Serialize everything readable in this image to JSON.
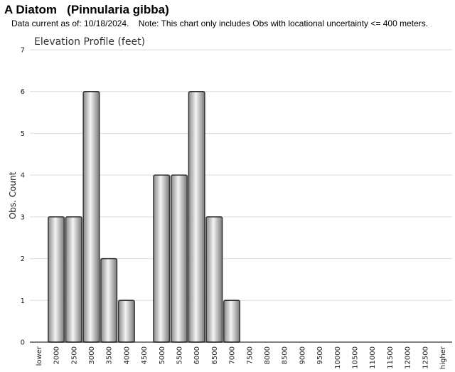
{
  "header": {
    "species_common": "A Diatom",
    "species_latin": "(Pinnularia gibba)",
    "data_note": "Data current as of: 10/18/2024.    Note: This chart only includes Obs with locational uncertainty <= 400 meters."
  },
  "chart_data": {
    "type": "bar",
    "title": "Elevation Profile (feet)",
    "xlabel": "",
    "ylabel": "Obs. Count",
    "ylim": [
      0,
      7
    ],
    "yticks": [
      0,
      1,
      2,
      3,
      4,
      5,
      6,
      7
    ],
    "grid": true,
    "categories": [
      "lower",
      "2000",
      "2500",
      "3000",
      "3500",
      "4000",
      "4500",
      "5000",
      "5500",
      "6000",
      "6500",
      "7000",
      "7500",
      "8000",
      "8500",
      "9000",
      "9500",
      "10000",
      "10500",
      "11000",
      "11500",
      "12000",
      "12500",
      "higher"
    ],
    "values": [
      0,
      3,
      3,
      6,
      2,
      1,
      0,
      4,
      4,
      6,
      3,
      1,
      0,
      0,
      0,
      0,
      0,
      0,
      0,
      0,
      0,
      0,
      0,
      0
    ],
    "bar_color": "#b0b0b0"
  }
}
